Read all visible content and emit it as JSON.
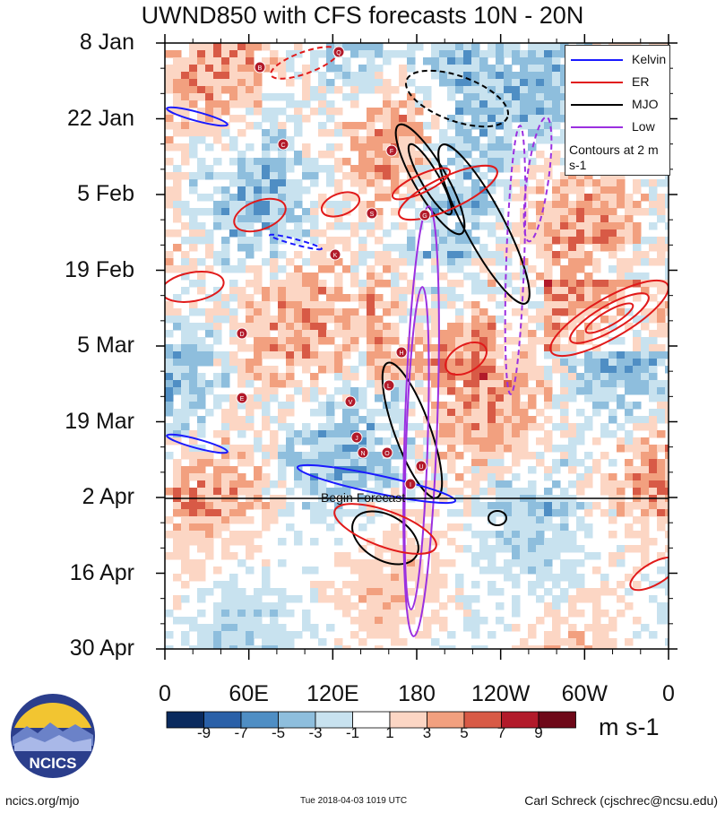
{
  "title": "UWND850 with CFS forecasts  10N - 20N",
  "legend": {
    "items": [
      {
        "name": "Kelvin",
        "color": "#1a1aff"
      },
      {
        "name": "ER",
        "color": "#e11a1a"
      },
      {
        "name": "MJO",
        "color": "#000000"
      },
      {
        "name": "Low",
        "color": "#9b30e0"
      }
    ],
    "note": "Contours at 2 m s-1"
  },
  "begin_forecast_label": "Begin Forecast",
  "colorbar": {
    "units": "m s-1",
    "labels": [
      "-9",
      "-7",
      "-5",
      "-3",
      "-1",
      "1",
      "3",
      "5",
      "7",
      "9"
    ],
    "colors": [
      "#0a2a5e",
      "#2a60a8",
      "#4f8ec4",
      "#8ebedd",
      "#c8e2ef",
      "#ffffff",
      "#fcd6c4",
      "#f2a07f",
      "#d85a46",
      "#b21a2a",
      "#6e0818"
    ]
  },
  "logo_text": "NCICS",
  "footer": {
    "left": "ncics.org/mjo",
    "middle": "Tue 2018-04-03 1019 UTC",
    "right": "Carl Schreck (cjschrec@ncsu.edu)"
  },
  "chart_data": {
    "type": "heatmap",
    "title": "UWND850 with CFS forecasts  10N - 20N",
    "xlabel": "",
    "ylabel": "",
    "x_tick_labels": [
      "0",
      "60E",
      "120E",
      "180",
      "120W",
      "60W",
      "0"
    ],
    "x_range_deg": [
      0,
      360
    ],
    "y_tick_labels": [
      "8 Jan",
      "22 Jan",
      "5 Feb",
      "19 Feb",
      "5 Mar",
      "19 Mar",
      "2 Apr",
      "16 Apr",
      "30 Apr"
    ],
    "y_range": [
      "2018-01-08",
      "2018-04-30"
    ],
    "forecast_start": "2018-04-02",
    "color_levels": [
      -9,
      -7,
      -5,
      -3,
      -1,
      1,
      3,
      5,
      7,
      9
    ],
    "storm_markers": [
      "B",
      "Q",
      "C",
      "F",
      "S",
      "G",
      "K",
      "D",
      "H",
      "L",
      "E",
      "V",
      "J",
      "N",
      "O",
      "I",
      "U"
    ],
    "contour_interval": "2 m s-1"
  }
}
